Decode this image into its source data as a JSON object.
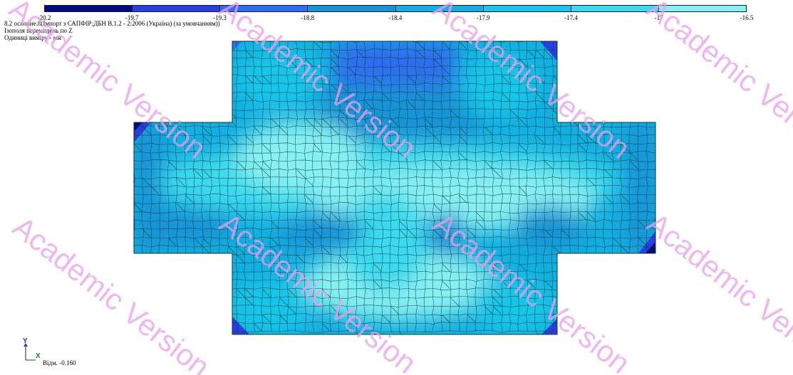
{
  "legend": {
    "colors": [
      "#000a7e",
      "#2b3fe0",
      "#2f6df0",
      "#1594d8",
      "#12afe2",
      "#18c6ea",
      "#3adaf0",
      "#86f0f3"
    ],
    "ticks": [
      "-20.2",
      "-19.7",
      "-19.3",
      "-18.8",
      "-18.4",
      "-17.9",
      "-17.4",
      "-17",
      "-16.5"
    ]
  },
  "info": {
    "line1": "8.2 основне.8(Імпорт з САПФІР;ДБН В.1.2 - 2:2006 (Україна) (за умовчанням))",
    "line2": "Ізополя переміщень по Z",
    "line3": "Одиниці виміру - мм"
  },
  "axes": {
    "y_label": "Y",
    "x_label": "X"
  },
  "elevation": "Відм. -0.160",
  "watermark": "Academic Version",
  "colors": {
    "mesh_line": "#0d3a2a",
    "background": "#ffffff"
  }
}
